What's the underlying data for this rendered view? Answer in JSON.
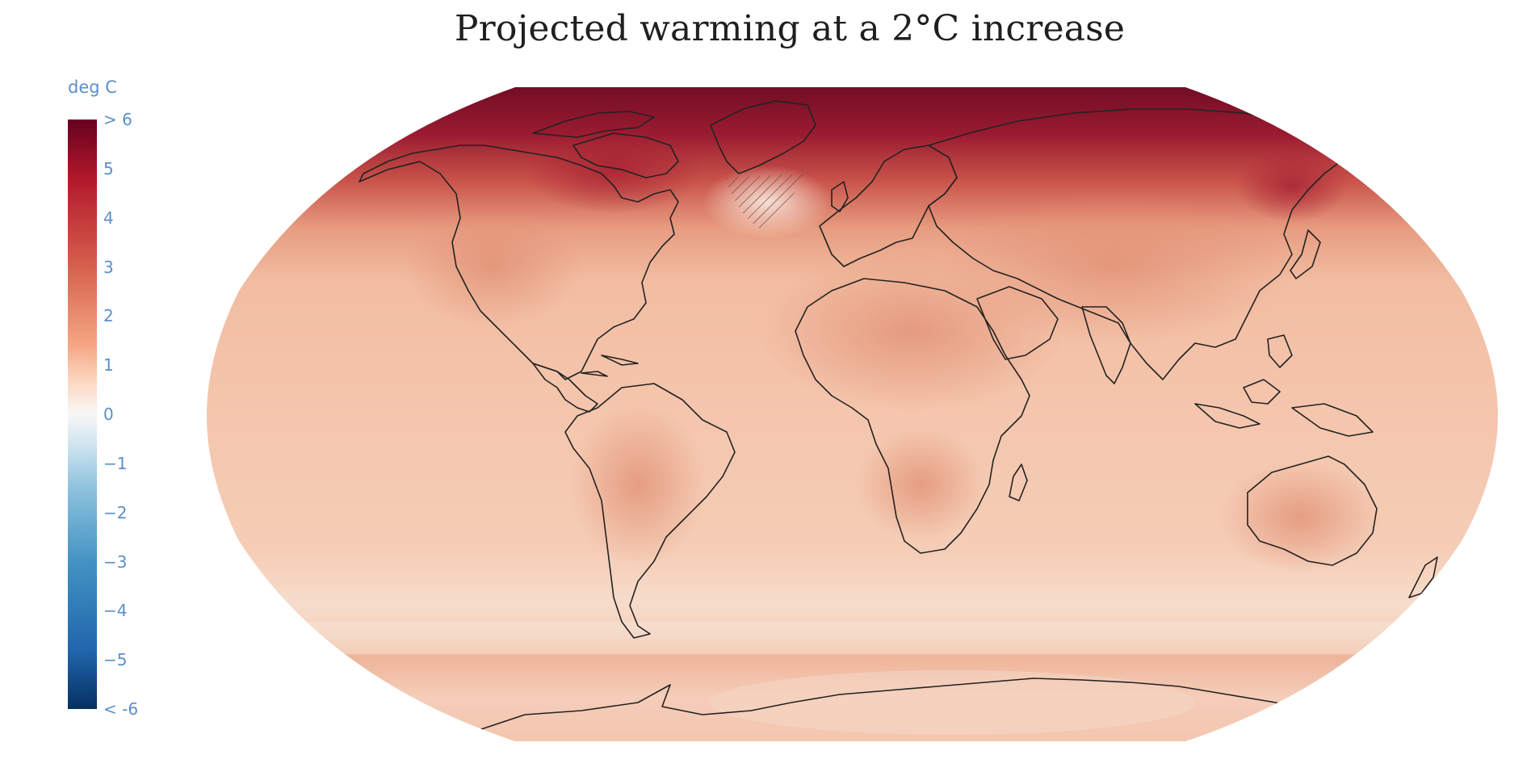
{
  "title": "Projected warming at a 2°C increase",
  "colorbar": {
    "title": "deg C",
    "range": [
      -6,
      6
    ],
    "ticks": [
      {
        "value": 6,
        "label": "> 6"
      },
      {
        "value": 5,
        "label": "5"
      },
      {
        "value": 4,
        "label": "4"
      },
      {
        "value": 3,
        "label": "3"
      },
      {
        "value": 2,
        "label": "2"
      },
      {
        "value": 1,
        "label": "1"
      },
      {
        "value": 0,
        "label": "0"
      },
      {
        "value": -1,
        "label": "−1"
      },
      {
        "value": -2,
        "label": "−2"
      },
      {
        "value": -3,
        "label": "−3"
      },
      {
        "value": -4,
        "label": "−4"
      },
      {
        "value": -5,
        "label": "−5"
      },
      {
        "value": -6,
        "label": "< -6"
      }
    ],
    "colors": {
      "max": "#67001f",
      "high": "#b2182b",
      "mid_high": "#d6604d",
      "low_high": "#f4a582",
      "pale": "#fddbc7",
      "zero": "#f7f7f7",
      "pale_cool": "#d1e5f0",
      "low_cool": "#92c5de",
      "mid_cool": "#4393c3",
      "cool": "#2166ac",
      "min": "#053061"
    }
  },
  "map": {
    "projection": "robinson",
    "hatched_region": "north-atlantic-warming-hole"
  }
}
